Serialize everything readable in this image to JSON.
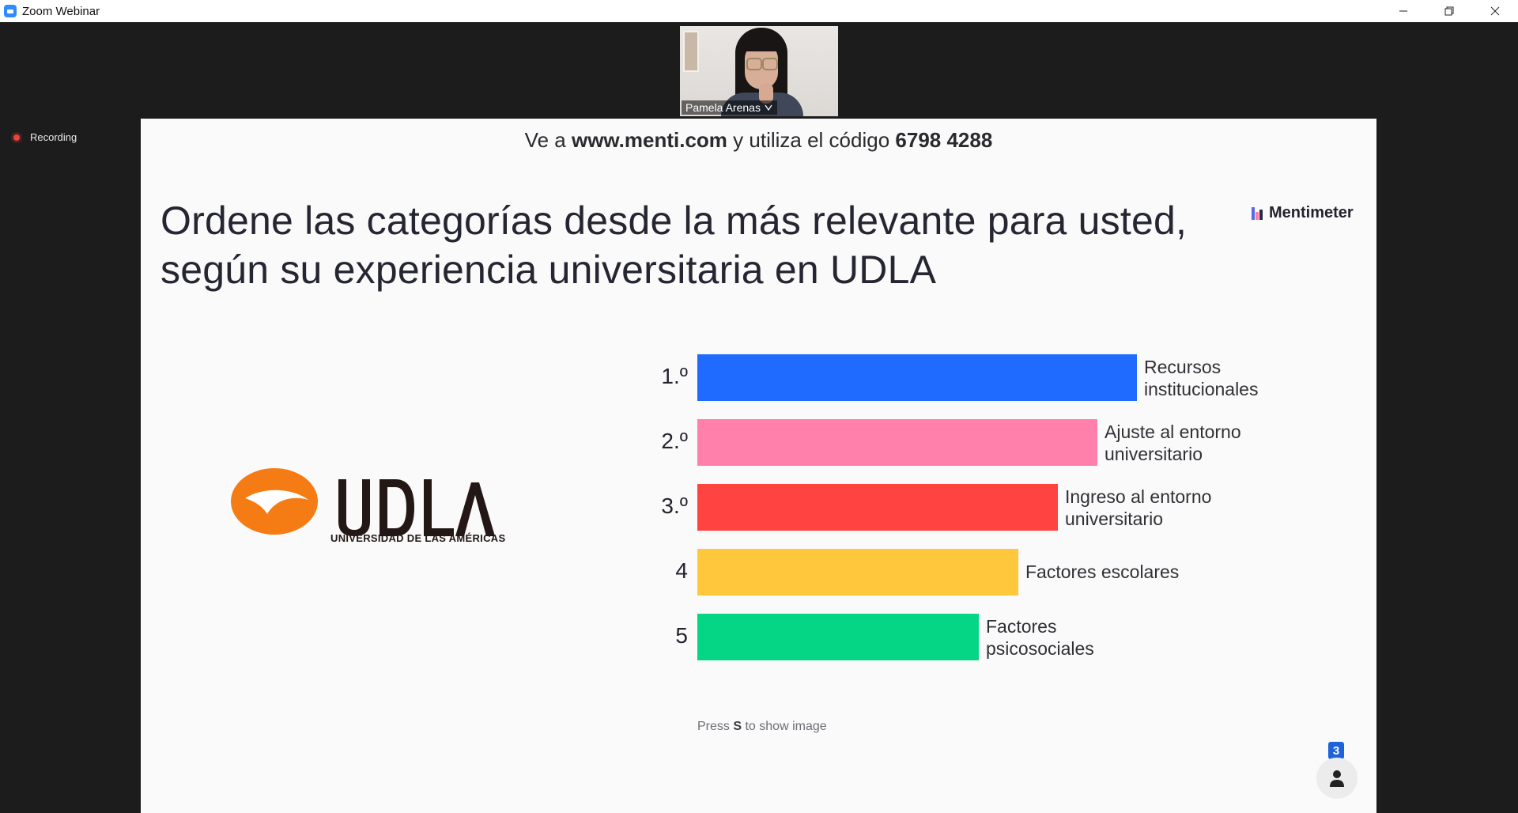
{
  "window": {
    "title": "Zoom Webinar",
    "controls": [
      "minimize-icon",
      "restore-icon",
      "close-icon"
    ]
  },
  "participant_video": {
    "name": "Pamela Arenas"
  },
  "recording": {
    "label": "Recording"
  },
  "slide": {
    "join": {
      "prefix": "Ve a",
      "url": "www.menti.com",
      "middle": "y utiliza el código",
      "code": "6798 4288"
    },
    "question": "Ordene las categorías desde la más relevante para usted, según su experiencia universitaria en UDLA",
    "brand": "Mentimeter",
    "logo": {
      "name": "UDLA",
      "subtitle": "UNIVERSIDAD DE LAS AMÉRICAS"
    },
    "press_hint": {
      "before": "Press",
      "key": "S",
      "after": "to show image"
    },
    "voter_count": "3"
  },
  "chart_data": {
    "type": "bar",
    "orientation": "horizontal",
    "ranks": [
      "1.º",
      "2.º",
      "3.º",
      "4",
      "5"
    ],
    "categories": [
      "Recursos institucionales",
      "Ajuste al entorno universitario",
      "Ingreso al entorno universitario",
      "Factores escolares",
      "Factores psicosociales"
    ],
    "label_lines": [
      [
        "Recursos",
        "institucionales"
      ],
      [
        "Ajuste al entorno",
        "universitario"
      ],
      [
        "Ingreso al entorno",
        "universitario"
      ],
      [
        "Factores escolares"
      ],
      [
        "Factores",
        "psicosociales"
      ]
    ],
    "values": [
      5,
      4.55,
      4.1,
      3.65,
      3.2
    ],
    "colors": [
      "#1f6bff",
      "#ff80ab",
      "#ff4340",
      "#ffc83c",
      "#04d686"
    ]
  }
}
